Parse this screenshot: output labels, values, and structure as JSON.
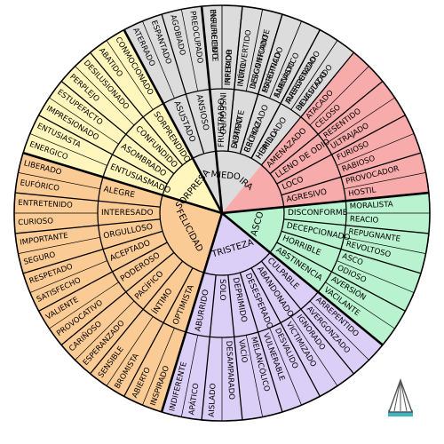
{
  "wheel": {
    "emotions": [
      {
        "core": "IRA",
        "color": "#f7abab",
        "middle": [
          {
            "word": "FRUSTRADO",
            "outer": [
              "ENFURECIDO",
              "IRRITADO"
            ]
          },
          {
            "word": "DISTANTE",
            "outer": [
              "INTROVERTIDO",
              "DESCONFIADO"
            ]
          },
          {
            "word": "CRÍTICO",
            "outer": [
              "ESCÉPTICO",
              "SARCÁSTICO"
            ]
          },
          {
            "word": "HERIDO",
            "outer": [
              "AVERGONZADO",
              "DEVASTADO"
            ]
          },
          {
            "word": "AMENAZADO",
            "outer": [
              "ATACADO",
              "CELOSO"
            ]
          },
          {
            "word": "LLENO DE ODIO",
            "outer": [
              "RESENTIDO",
              "ULTRAJADO"
            ]
          },
          {
            "word": "LOCO",
            "outer": [
              "FURIOSO",
              "RABIOSO"
            ]
          },
          {
            "word": "AGRESIVO",
            "outer": [
              "PROVOCADOR",
              "HOSTIL"
            ]
          }
        ]
      },
      {
        "core": "ASCO",
        "color": "#b8f2cf",
        "middle": [
          {
            "word": "DISCONFORME",
            "outer": [
              "MORALISTA",
              "REACIO"
            ]
          },
          {
            "word": "DECEPCIONADO",
            "outer": [
              "REPUGNANTE",
              "REVOLTOSO"
            ]
          },
          {
            "word": "HORRIBLE",
            "outer": [
              "ASCO",
              "ODIOSO"
            ]
          },
          {
            "word": "ABSTINENCIA",
            "outer": [
              "AVERSIÓN",
              "VACILANTE"
            ]
          }
        ]
      },
      {
        "core": "TRISTEZA",
        "color": "#dccff7",
        "middle": [
          {
            "word": "CULPABLE",
            "outer": [
              "ARREPENTIDO",
              "AVERGONZADO"
            ]
          },
          {
            "word": "ABANDONADO",
            "outer": [
              "IGNORADO",
              "VICTIMIZADO"
            ]
          },
          {
            "word": "DESESPERADO",
            "outer": [
              "DESVALIDO",
              "VULNERABLE"
            ]
          },
          {
            "word": "DEPRIMIDO",
            "outer": [
              "MELANCÓLICO",
              "VACÍO"
            ]
          },
          {
            "word": "SOLO",
            "outer": [
              "DESAMPARADO",
              "AISLADO"
            ]
          },
          {
            "word": "ABURRIDO",
            "outer": [
              "APÁTICO",
              "INDIFERENTE"
            ]
          }
        ]
      },
      {
        "core": "FELICIDAD",
        "color": "#fbcb95",
        "middle": [
          {
            "word": "OPTIMISTA",
            "outer": [
              "INSPIRADO",
              "ABIERTO"
            ]
          },
          {
            "word": "ÍNTIMO",
            "outer": [
              "BROMISTA",
              "SENSIBLE"
            ]
          },
          {
            "word": "PACÍFICO",
            "outer": [
              "ESPERANZADO",
              "CARIÑOSO"
            ]
          },
          {
            "word": "PODEROSO",
            "outer": [
              "PROVOCATIVO",
              "VALIENTE"
            ]
          },
          {
            "word": "ACEPTADO",
            "outer": [
              "SATISFECHO",
              "RESPETADO"
            ]
          },
          {
            "word": "ORGULLOSO",
            "outer": [
              "SEGURO",
              "IMPORTANTE"
            ]
          },
          {
            "word": "INTERESADO",
            "outer": [
              "CURIOSO",
              "ENTRETENIDO"
            ]
          },
          {
            "word": "ALEGRE",
            "outer": [
              "EUFÓRICO",
              "LIBERADO"
            ]
          }
        ]
      },
      {
        "core": "SORPRESA",
        "color": "#fef6bc",
        "middle": [
          {
            "word": "ENTUSIASMADO",
            "outer": [
              "ENERGICO",
              "ENTUSIASTA"
            ]
          },
          {
            "word": "ASOMBRADO",
            "outer": [
              "IMPRESIONADO",
              "ESTUPEFACTO"
            ]
          },
          {
            "word": "CONFUNDIDO",
            "outer": [
              "PERPLEJO",
              "DESILUSIONADO"
            ]
          },
          {
            "word": "SORPRENDIDO",
            "outer": [
              "ABATIDO",
              "CONMOCIONADO"
            ]
          }
        ]
      },
      {
        "core": "MIEDO",
        "color": "#dcdcdc",
        "middle": [
          {
            "word": "ASUSTADO",
            "outer": [
              "ATERRADO",
              "ESPANTADO"
            ]
          },
          {
            "word": "ANSIOSO",
            "outer": [
              "AGOBIADO",
              "PREOCUPADO"
            ]
          },
          {
            "word": "INSEGURO",
            "outer": [
              "INSUFICIENTE",
              "INFERIOR"
            ]
          },
          {
            "word": "SUMISO",
            "outer": [
              "INÚTIL",
              "INSIGNIFICANTE"
            ]
          },
          {
            "word": "RECHAZADO",
            "outer": [
              "MARGINADO",
              "ALIENADO"
            ]
          },
          {
            "word": "HUMILLADO",
            "outer": [
              "IRRESPETADO",
              "RIDICULIZADO"
            ]
          }
        ]
      }
    ]
  }
}
